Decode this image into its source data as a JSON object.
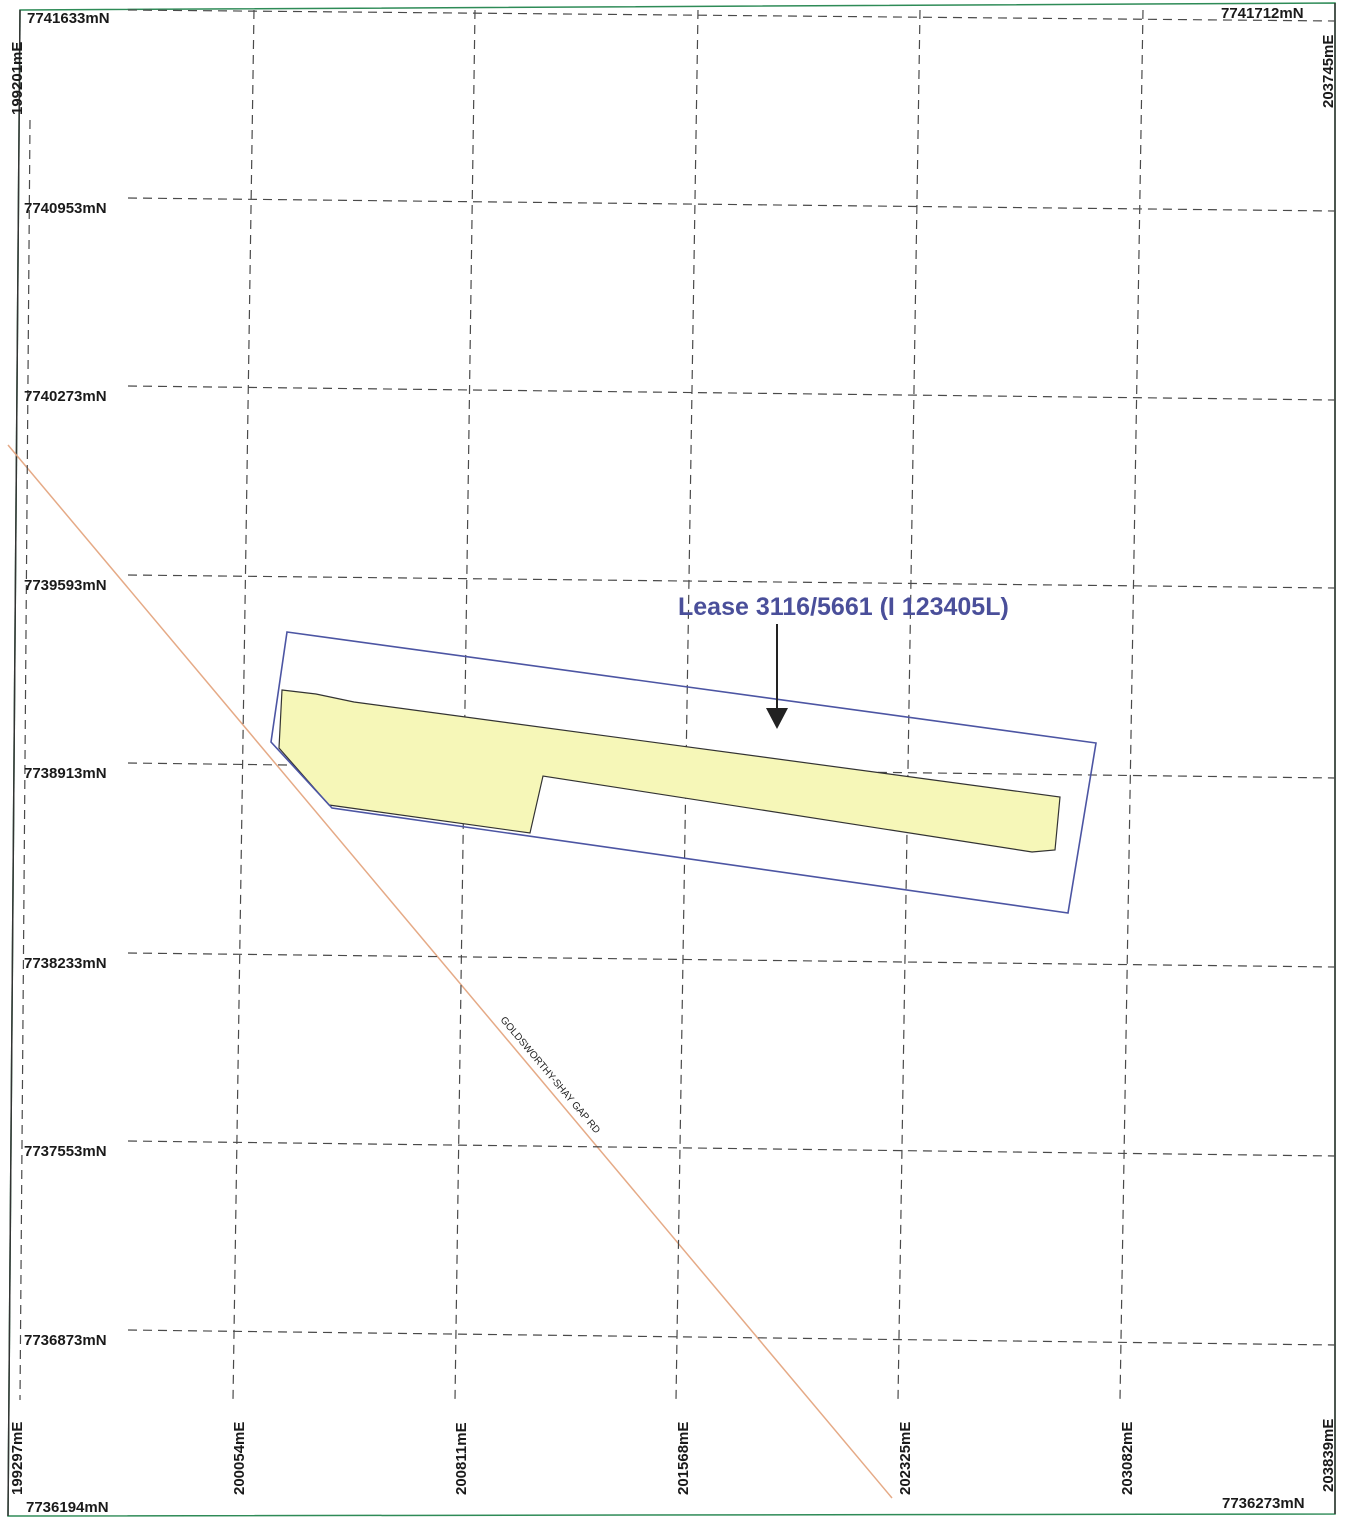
{
  "map": {
    "colors": {
      "frame": "#2e8b57",
      "grid": "#4a4a4a",
      "lease_outline": "#4c55a3",
      "lease_fill": "#f6f7b8",
      "road": "#e3a17a",
      "label": "#1a1a1a",
      "lease_label": "#4a4f9a",
      "arrow": "#222222"
    },
    "northings": {
      "top_left": "7741633mN",
      "top_right": "7741712mN",
      "rows": [
        "7740953mN",
        "7740273mN",
        "7739593mN",
        "7738913mN",
        "7738233mN",
        "7737553mN",
        "7736873mN"
      ],
      "bottom_left": "7736194mN",
      "bottom_right": "7736273mN"
    },
    "eastings": {
      "top_left": "199201mE",
      "top_right": "203745mE",
      "bottom_left": "199297mE",
      "columns": [
        "200054mE",
        "200811mE",
        "201568mE",
        "202325mE",
        "203082mE"
      ],
      "bottom_right": "203839mE"
    },
    "lease_label": "Lease 3116/5661 (I 123405L)",
    "road_label": "GOLDSWORTHY-SHAY GAP RD"
  }
}
